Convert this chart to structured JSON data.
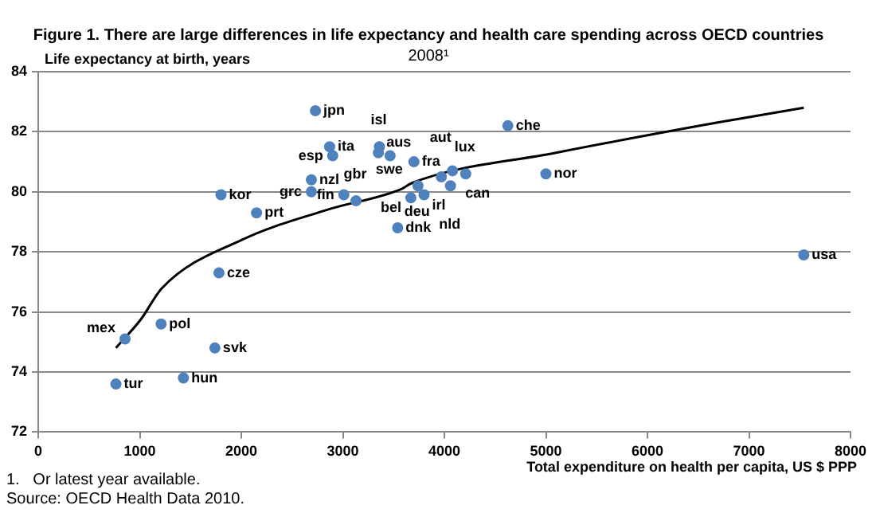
{
  "chart_data": {
    "type": "scatter",
    "title": "Figure 1. There are large differences in life expectancy and health care spending across OECD countries",
    "subtitle": "2008¹",
    "xlabel": "Total expenditure on health per capita, US $ PPP",
    "ylabel": "Life expectancy at birth, years",
    "series": [
      {
        "color": "#4f81bd",
        "x": [
          2730,
          2870,
          2900,
          3350,
          3360,
          3465,
          3700,
          3740,
          3670,
          3800,
          3970,
          4080,
          4060,
          4210,
          5000,
          4625,
          7540,
          3540,
          2690,
          2690,
          3010,
          3130,
          1800,
          2150,
          1780,
          855,
          1210,
          1740,
          765,
          1430
        ],
        "values": [
          82.7,
          81.5,
          81.2,
          81.3,
          81.5,
          81.2,
          81.0,
          80.2,
          79.8,
          79.9,
          80.5,
          80.7,
          80.2,
          80.6,
          80.6,
          82.2,
          77.9,
          78.8,
          80.4,
          80.0,
          79.9,
          79.7,
          79.9,
          79.3,
          77.3,
          75.1,
          75.6,
          74.8,
          73.6,
          73.8
        ]
      },
      {
        "type": "line",
        "color": "#000000",
        "marker": "none",
        "x": [
          765,
          1010,
          1220,
          2005,
          2845,
          3580,
          3685,
          5100,
          6680,
          7540
        ],
        "values": [
          74.8,
          75.75,
          76.8,
          78.4,
          79.4,
          80.1,
          80.3,
          81.3,
          82.3,
          82.8
        ]
      }
    ],
    "annotations": [
      {
        "text": "jpn",
        "x": 2730,
        "y": 82.7
      },
      {
        "text": "ita",
        "x": 2870,
        "y": 81.5
      },
      {
        "text": "esp",
        "x": 2900,
        "y": 81.2
      },
      {
        "text": "aus",
        "x": 3350,
        "y": 81.3
      },
      {
        "text": "isl",
        "x": 3360,
        "y": 81.5
      },
      {
        "text": "swe",
        "x": 3465,
        "y": 81.2
      },
      {
        "text": "fra",
        "x": 3700,
        "y": 81.0
      },
      {
        "text": "deu",
        "x": 3740,
        "y": 80.2
      },
      {
        "text": "bel",
        "x": 3670,
        "y": 79.8
      },
      {
        "text": "irl",
        "x": 3800,
        "y": 79.9
      },
      {
        "text": "aut",
        "x": 3970,
        "y": 80.5
      },
      {
        "text": "can",
        "x": 4080,
        "y": 80.7
      },
      {
        "text": "nld",
        "x": 4060,
        "y": 80.2
      },
      {
        "text": "lux",
        "x": 4210,
        "y": 80.6
      },
      {
        "text": "nor",
        "x": 5000,
        "y": 80.6
      },
      {
        "text": "che",
        "x": 4625,
        "y": 82.2
      },
      {
        "text": "usa",
        "x": 7540,
        "y": 77.9
      },
      {
        "text": "dnk",
        "x": 3540,
        "y": 78.8
      },
      {
        "text": "nzl",
        "x": 2690,
        "y": 80.4
      },
      {
        "text": "grc",
        "x": 2690,
        "y": 80.0
      },
      {
        "text": "fin",
        "x": 3010,
        "y": 79.9
      },
      {
        "text": "gbr",
        "x": 3130,
        "y": 79.7
      },
      {
        "text": "kor",
        "x": 1800,
        "y": 79.9
      },
      {
        "text": "prt",
        "x": 2150,
        "y": 79.3
      },
      {
        "text": "cze",
        "x": 1780,
        "y": 77.3
      },
      {
        "text": "mex",
        "x": 855,
        "y": 75.1
      },
      {
        "text": "pol",
        "x": 1210,
        "y": 75.6
      },
      {
        "text": "svk",
        "x": 1740,
        "y": 74.8
      },
      {
        "text": "tur",
        "x": 765,
        "y": 73.6
      },
      {
        "text": "hun",
        "x": 1430,
        "y": 73.8
      },
      "1.   Or latest year available.",
      "Source: OECD Health Data 2010."
    ],
    "xlim": [
      0,
      8000
    ],
    "xticks": [
      0,
      1000,
      2000,
      3000,
      4000,
      5000,
      6000,
      7000,
      8000
    ],
    "ylim": [
      72,
      84
    ],
    "yticks": [
      72,
      74,
      76,
      78,
      80,
      82,
      84
    ],
    "grid": "y",
    "marker": "circle",
    "line_style": "solid",
    "legend": false
  }
}
